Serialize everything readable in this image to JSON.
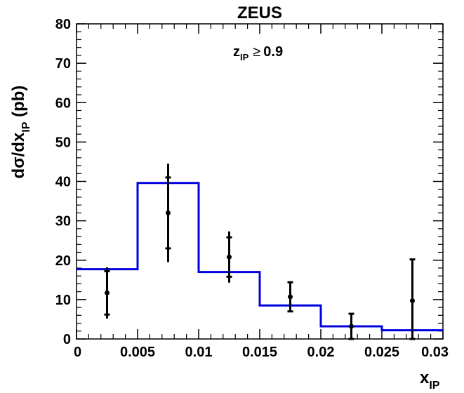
{
  "chart_data": {
    "type": "scatter",
    "title": "ZEUS",
    "annotation": {
      "base": "z",
      "subscript": "IP",
      "operator": "≥",
      "value": "0.9"
    },
    "xlabel": {
      "base": "x",
      "subscript": "IP"
    },
    "ylabel": {
      "prefix": "dσ/dx",
      "subscript": "IP",
      "suffix": " (pb)"
    },
    "xlim": [
      0,
      0.03
    ],
    "ylim": [
      0,
      80
    ],
    "x_ticks": [
      {
        "value": 0,
        "label": "0"
      },
      {
        "value": 0.005,
        "label": "0.005"
      },
      {
        "value": 0.01,
        "label": "0.01"
      },
      {
        "value": 0.015,
        "label": "0.015"
      },
      {
        "value": 0.02,
        "label": "0.02"
      },
      {
        "value": 0.025,
        "label": "0.025"
      },
      {
        "value": 0.03,
        "label": "0.03"
      }
    ],
    "y_ticks": [
      {
        "value": 0,
        "label": "0"
      },
      {
        "value": 10,
        "label": "10"
      },
      {
        "value": 20,
        "label": "20"
      },
      {
        "value": 30,
        "label": "30"
      },
      {
        "value": 40,
        "label": "40"
      },
      {
        "value": 50,
        "label": "50"
      },
      {
        "value": 60,
        "label": "60"
      },
      {
        "value": 70,
        "label": "70"
      },
      {
        "value": 80,
        "label": "80"
      }
    ],
    "grid": false,
    "series": [
      {
        "kind": "data-points",
        "color": "#000000",
        "x": [
          0.0025,
          0.0075,
          0.0125,
          0.0175,
          0.0225,
          0.0275
        ],
        "y": [
          11.7,
          32,
          20.8,
          10.7,
          3.2,
          9.7
        ],
        "stat_err": [
          5.5,
          9,
          5,
          3.7,
          3.2,
          10.5
        ],
        "total_err": [
          6.5,
          12.5,
          6.5,
          3.7,
          3.2,
          10.5
        ]
      },
      {
        "kind": "histogram",
        "color": "#0000dd",
        "bin_edges": [
          0,
          0.005,
          0.01,
          0.015,
          0.02,
          0.025,
          0.03
        ],
        "values": [
          17.7,
          39.6,
          17,
          8.5,
          3.2,
          2.2
        ]
      }
    ]
  }
}
